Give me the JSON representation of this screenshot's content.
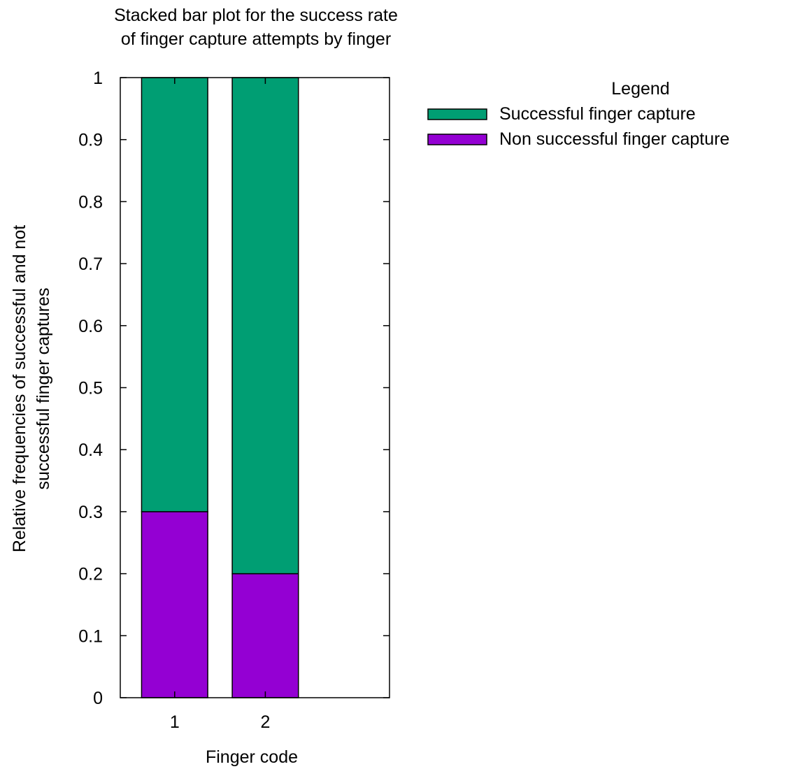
{
  "chart_data": {
    "type": "bar",
    "stacked": true,
    "title_lines": [
      "Stacked bar plot for the success rate",
      "of finger capture attempts by finger"
    ],
    "xlabel": "Finger code",
    "ylabel_lines": [
      "Relative frequencies of successful and not",
      "successful finger captures"
    ],
    "categories": [
      "1",
      "2"
    ],
    "xlim": [
      0.4,
      3.37
    ],
    "ylim": [
      0,
      1
    ],
    "yticks": [
      0,
      0.1,
      0.2,
      0.3,
      0.4,
      0.5,
      0.6,
      0.7,
      0.8,
      0.9,
      1
    ],
    "ytick_labels": [
      "0",
      "0.1",
      "0.2",
      "0.3",
      "0.4",
      "0.5",
      "0.6",
      "0.7",
      "0.8",
      "0.9",
      "1"
    ],
    "grid": false,
    "legend": {
      "title": "Legend",
      "placement": "outside-right-top"
    },
    "series": [
      {
        "name": "Non successful finger capture",
        "color": "#9400d3",
        "values": [
          0.3,
          0.2
        ]
      },
      {
        "name": "Successful finger capture",
        "color": "#009e73",
        "values": [
          0.7,
          0.8
        ]
      }
    ],
    "legend_order": [
      1,
      0
    ]
  }
}
